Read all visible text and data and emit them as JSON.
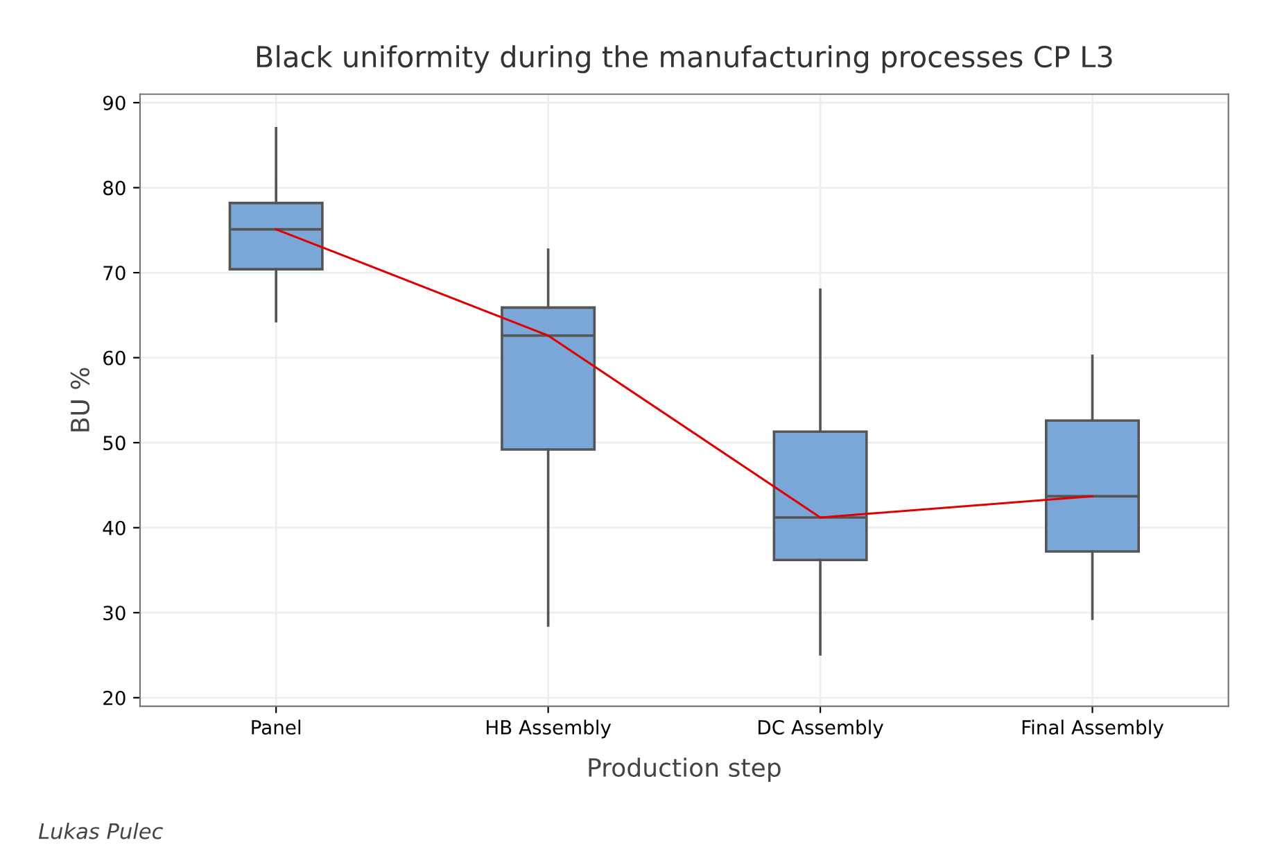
{
  "chart_data": {
    "type": "box",
    "title": "Black uniformity during the manufacturing processes CP L3",
    "xlabel": "Production step",
    "ylabel": "BU %",
    "categories": [
      "Panel",
      "HB Assembly",
      "DC Assembly",
      "Final Assembly"
    ],
    "series": [
      {
        "color": "#7ba6d8",
        "boxes": [
          {
            "low": 64.3,
            "q1": 70.4,
            "median": 75.1,
            "q3": 78.2,
            "high": 87.0
          },
          {
            "low": 28.5,
            "q1": 49.2,
            "median": 62.6,
            "q3": 65.9,
            "high": 72.7
          },
          {
            "low": 25.1,
            "q1": 36.2,
            "median": 41.2,
            "q3": 51.3,
            "high": 68.0
          },
          {
            "low": 29.3,
            "q1": 37.2,
            "median": 43.7,
            "q3": 52.6,
            "high": 60.2
          }
        ]
      },
      {
        "type": "line",
        "color": "#e00000",
        "values": [
          75.1,
          62.6,
          41.2,
          43.7
        ]
      }
    ],
    "ylim": [
      19,
      91
    ],
    "yticks": [
      20,
      30,
      40,
      50,
      60,
      70,
      80,
      90
    ],
    "grid": true,
    "marker": "none",
    "line_style": "solid",
    "annotations": [
      "Lukas Pulec"
    ]
  }
}
